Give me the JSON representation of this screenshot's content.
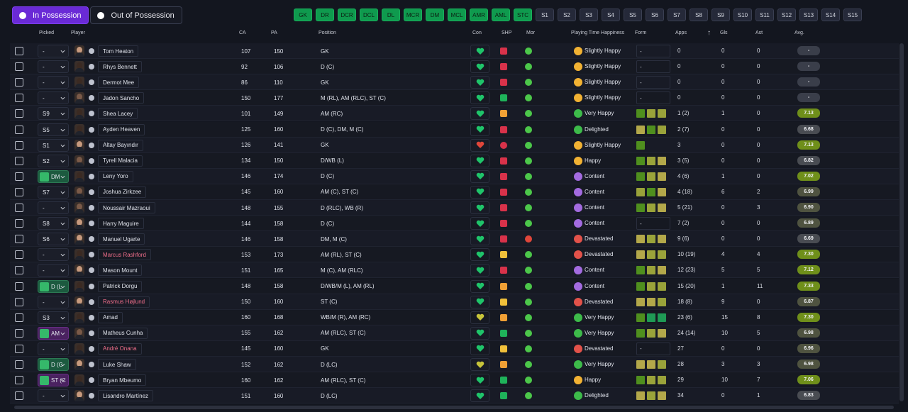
{
  "tabs": [
    {
      "label": "In Possession",
      "icon": "ball-icon",
      "active": true
    },
    {
      "label": "Out of Possession",
      "icon": "ball-icon",
      "active": false
    }
  ],
  "position_filters": [
    {
      "label": "GK",
      "on": true
    },
    {
      "label": "DR",
      "on": true
    },
    {
      "label": "DCR",
      "on": true
    },
    {
      "label": "DCL",
      "on": true
    },
    {
      "label": "DL",
      "on": true
    },
    {
      "label": "MCR",
      "on": true
    },
    {
      "label": "DM",
      "on": true
    },
    {
      "label": "MCL",
      "on": true
    },
    {
      "label": "AMR",
      "on": true
    },
    {
      "label": "AML",
      "on": true
    },
    {
      "label": "STC",
      "on": true
    },
    {
      "label": "S1",
      "on": false
    },
    {
      "label": "S2",
      "on": false
    },
    {
      "label": "S3",
      "on": false
    },
    {
      "label": "S4",
      "on": false
    },
    {
      "label": "S5",
      "on": false
    },
    {
      "label": "S6",
      "on": false
    },
    {
      "label": "S7",
      "on": false
    },
    {
      "label": "S8",
      "on": false
    },
    {
      "label": "S9",
      "on": false
    },
    {
      "label": "S10",
      "on": false
    },
    {
      "label": "S11",
      "on": false
    },
    {
      "label": "S12",
      "on": false
    },
    {
      "label": "S13",
      "on": false
    },
    {
      "label": "S14",
      "on": false
    },
    {
      "label": "S15",
      "on": false
    }
  ],
  "columns": {
    "picked": "Picked",
    "player": "Player",
    "ca": "CA",
    "pa": "PA",
    "position": "Position",
    "con": "Con",
    "shp": "SHP",
    "mor": "Mor",
    "happiness": "Playing Time Happiness",
    "form": "Form",
    "apps": "Apps",
    "gls": "Gls",
    "ast": "Ast",
    "avg": "Avg."
  },
  "colors": {
    "accent": "#6a2ad6",
    "filter_on": "#0f9a4e",
    "red_name": "#ef6e8a"
  },
  "rows": [
    {
      "picked": "-",
      "name": "Tom Heaton",
      "ca": "107",
      "pa": "150",
      "position": "GK",
      "shp": "x",
      "mor": "ok",
      "happiness": "Slightly Happy",
      "hc": "yel",
      "form": [],
      "apps": "0",
      "gls": "0",
      "ast": "0",
      "avg": "-",
      "skin": "light"
    },
    {
      "picked": "-",
      "name": "Rhys Bennett",
      "ca": "92",
      "pa": "106",
      "position": "D (C)",
      "shp": "x",
      "mor": "ok",
      "happiness": "Slightly Happy",
      "hc": "yel",
      "form": [],
      "apps": "0",
      "gls": "0",
      "ast": "0",
      "avg": "-",
      "skin": "dark"
    },
    {
      "picked": "-",
      "name": "Dermot Mee",
      "ca": "86",
      "pa": "110",
      "position": "GK",
      "shp": "x",
      "mor": "ok",
      "happiness": "Slightly Happy",
      "hc": "yel",
      "form": [],
      "apps": "0",
      "gls": "0",
      "ast": "0",
      "avg": "-",
      "skin": "dark"
    },
    {
      "picked": "-",
      "name": "Jadon Sancho",
      "ca": "150",
      "pa": "177",
      "position": "M (RL), AM (RLC), ST (C)",
      "shp": "ok",
      "mor": "ok",
      "happiness": "Slightly Happy",
      "hc": "yel",
      "form": [],
      "apps": "0",
      "gls": "0",
      "ast": "0",
      "avg": "-",
      "skin": "mid"
    },
    {
      "picked": "S9",
      "name": "Shea Lacey",
      "ca": "101",
      "pa": "149",
      "position": "AM (RC)",
      "shp": "warn",
      "mor": "ok",
      "happiness": "Very Happy",
      "hc": "grn",
      "form": [
        "#4f8f1e",
        "#9aa33a",
        "#9aa33a"
      ],
      "apps": "1 (2)",
      "gls": "1",
      "ast": "0",
      "avg": "7.13",
      "skin": "dark"
    },
    {
      "picked": "S5",
      "name": "Ayden Heaven",
      "ca": "125",
      "pa": "160",
      "position": "D (C), DM, M (C)",
      "shp": "x",
      "mor": "ok",
      "happiness": "Delighted",
      "hc": "grn",
      "form": [
        "#b3a84a",
        "#4f8f1e",
        "#9aa33a"
      ],
      "apps": "2 (7)",
      "gls": "0",
      "ast": "0",
      "avg": "6.68",
      "skin": "dark"
    },
    {
      "picked": "S1",
      "name": "Altay Bayındır",
      "ca": "126",
      "pa": "141",
      "position": "GK",
      "shp": "red",
      "mor": "ok",
      "happiness": "Slightly Happy",
      "hc": "yel",
      "form": [
        "#4f8f1e"
      ],
      "apps": "3",
      "gls": "0",
      "ast": "0",
      "avg": "7.13",
      "skin": "light"
    },
    {
      "picked": "S2",
      "name": "Tyrell Malacia",
      "ca": "134",
      "pa": "150",
      "position": "D/WB (L)",
      "shp": "x",
      "mor": "ok",
      "happiness": "Happy",
      "hc": "yel",
      "form": [
        "#4f8f1e",
        "#9aa33a",
        "#b3a84a"
      ],
      "apps": "3 (5)",
      "gls": "0",
      "ast": "0",
      "avg": "6.82",
      "skin": "mid"
    },
    {
      "picked": "DM",
      "picked_icon": true,
      "name": "Leny Yoro",
      "ca": "146",
      "pa": "174",
      "position": "D (C)",
      "shp": "x",
      "mor": "ok",
      "happiness": "Content",
      "hc": "pur",
      "form": [
        "#4f8f1e",
        "#9aa33a",
        "#b3a84a"
      ],
      "apps": "4 (6)",
      "gls": "1",
      "ast": "0",
      "avg": "7.02",
      "skin": "dark"
    },
    {
      "picked": "S7",
      "name": "Joshua Zirkzee",
      "ca": "145",
      "pa": "160",
      "position": "AM (C), ST (C)",
      "shp": "x",
      "mor": "ok",
      "happiness": "Content",
      "hc": "pur",
      "form": [
        "#9aa33a",
        "#4f8f1e",
        "#b3a84a"
      ],
      "apps": "4 (18)",
      "gls": "6",
      "ast": "2",
      "avg": "6.99",
      "skin": "mid"
    },
    {
      "picked": "-",
      "name": "Noussair Mazraoui",
      "ca": "148",
      "pa": "155",
      "position": "D (RLC), WB (R)",
      "shp": "x",
      "mor": "ok",
      "happiness": "Content",
      "hc": "pur",
      "form": [
        "#4f8f1e",
        "#9aa33a",
        "#b3a84a"
      ],
      "apps": "5 (21)",
      "gls": "0",
      "ast": "3",
      "avg": "6.90",
      "skin": "mid"
    },
    {
      "picked": "S8",
      "name": "Harry Maguire",
      "ca": "144",
      "pa": "158",
      "position": "D (C)",
      "shp": "x",
      "mor": "ok",
      "happiness": "Content",
      "hc": "pur",
      "form": [],
      "apps": "7 (2)",
      "gls": "0",
      "ast": "0",
      "avg": "6.89",
      "skin": "light"
    },
    {
      "picked": "S6",
      "name": "Manuel Ugarte",
      "ca": "146",
      "pa": "158",
      "position": "DM, M (C)",
      "shp": "x",
      "mor": "red",
      "happiness": "Devastated",
      "hc": "red",
      "form": [
        "#b3a84a",
        "#9aa33a",
        "#b3a84a"
      ],
      "apps": "9 (6)",
      "gls": "0",
      "ast": "0",
      "avg": "6.69",
      "skin": "light"
    },
    {
      "picked": "-",
      "name": "Marcus Rashford",
      "red": true,
      "ca": "153",
      "pa": "173",
      "position": "AM (RL), ST (C)",
      "shp": "mid",
      "mor": "ok",
      "happiness": "Devastated",
      "hc": "red",
      "form": [
        "#b3a84a",
        "#9aa33a",
        "#9aa33a"
      ],
      "apps": "10 (19)",
      "gls": "4",
      "ast": "4",
      "avg": "7.30",
      "skin": "dark"
    },
    {
      "picked": "-",
      "name": "Mason Mount",
      "ca": "151",
      "pa": "165",
      "position": "M (C), AM (RLC)",
      "shp": "x",
      "mor": "ok",
      "happiness": "Content",
      "hc": "pur",
      "form": [
        "#4f8f1e",
        "#9aa33a",
        "#b3a84a"
      ],
      "apps": "12 (23)",
      "gls": "5",
      "ast": "5",
      "avg": "7.12",
      "skin": "light"
    },
    {
      "picked": "D (L",
      "picked_icon": true,
      "name": "Patrick Dorgu",
      "ca": "148",
      "pa": "158",
      "position": "D/WB/M (L), AM (RL)",
      "shp": "warn",
      "mor": "ok",
      "happiness": "Content",
      "hc": "pur",
      "form": [
        "#4f8f1e",
        "#9aa33a",
        "#9aa33a"
      ],
      "apps": "15 (20)",
      "gls": "1",
      "ast": "11",
      "avg": "7.33",
      "skin": "dark"
    },
    {
      "picked": "-",
      "name": "Rasmus Højlund",
      "red": true,
      "ca": "150",
      "pa": "160",
      "position": "ST (C)",
      "shp": "mid",
      "mor": "ok",
      "happiness": "Devastated",
      "hc": "red",
      "form": [
        "#b3a84a",
        "#b3a84a",
        "#9aa33a"
      ],
      "apps": "18 (8)",
      "gls": "9",
      "ast": "0",
      "avg": "6.87",
      "skin": "light"
    },
    {
      "picked": "S3",
      "name": "Amad",
      "ca": "160",
      "pa": "168",
      "position": "WB/M (R), AM (RC)",
      "shp": "warn",
      "mor": "ok",
      "happiness": "Very Happy",
      "hc": "grn",
      "form": [
        "#4f8f1e",
        "#1f9a55",
        "#1f9a55"
      ],
      "apps": "23 (6)",
      "gls": "15",
      "ast": "8",
      "avg": "7.30",
      "skin": "dark"
    },
    {
      "picked": "AM",
      "picked_icon": true,
      "purple": true,
      "name": "Matheus Cunha",
      "ca": "155",
      "pa": "162",
      "position": "AM (RLC), ST (C)",
      "shp": "ok",
      "mor": "ok",
      "happiness": "Very Happy",
      "hc": "grn",
      "form": [
        "#4f8f1e",
        "#9aa33a",
        "#b3a84a"
      ],
      "apps": "24 (14)",
      "gls": "10",
      "ast": "5",
      "avg": "6.98",
      "skin": "mid"
    },
    {
      "picked": "-",
      "name": "André Onana",
      "red": true,
      "ca": "145",
      "pa": "160",
      "position": "GK",
      "shp": "mid",
      "mor": "ok",
      "happiness": "Devastated",
      "hc": "red",
      "form": [],
      "apps": "27",
      "gls": "0",
      "ast": "0",
      "avg": "6.96",
      "skin": "dark"
    },
    {
      "picked": "D (C",
      "picked_icon": true,
      "name": "Luke Shaw",
      "ca": "152",
      "pa": "162",
      "position": "D (LC)",
      "shp": "warn",
      "mor": "ok",
      "happiness": "Very Happy",
      "hc": "grn",
      "form": [
        "#b3a84a",
        "#b3a84a",
        "#9aa33a"
      ],
      "apps": "28",
      "gls": "3",
      "ast": "3",
      "avg": "6.98",
      "skin": "light"
    },
    {
      "picked": "ST (C",
      "picked_icon": true,
      "purple": true,
      "name": "Bryan Mbeumo",
      "ca": "160",
      "pa": "162",
      "position": "AM (RLC), ST (C)",
      "shp": "ok",
      "mor": "ok",
      "happiness": "Happy",
      "hc": "yel",
      "form": [
        "#4f8f1e",
        "#9aa33a",
        "#9aa33a"
      ],
      "apps": "29",
      "gls": "10",
      "ast": "7",
      "avg": "7.06",
      "skin": "dark"
    },
    {
      "picked": "-",
      "name": "Lisandro Martínez",
      "ca": "151",
      "pa": "160",
      "position": "D (LC)",
      "shp": "ok",
      "mor": "ok",
      "happiness": "Delighted",
      "hc": "grn",
      "form": [
        "#b3a84a",
        "#9aa33a",
        "#b3a84a"
      ],
      "apps": "34",
      "gls": "0",
      "ast": "1",
      "avg": "6.83",
      "skin": "light"
    }
  ]
}
